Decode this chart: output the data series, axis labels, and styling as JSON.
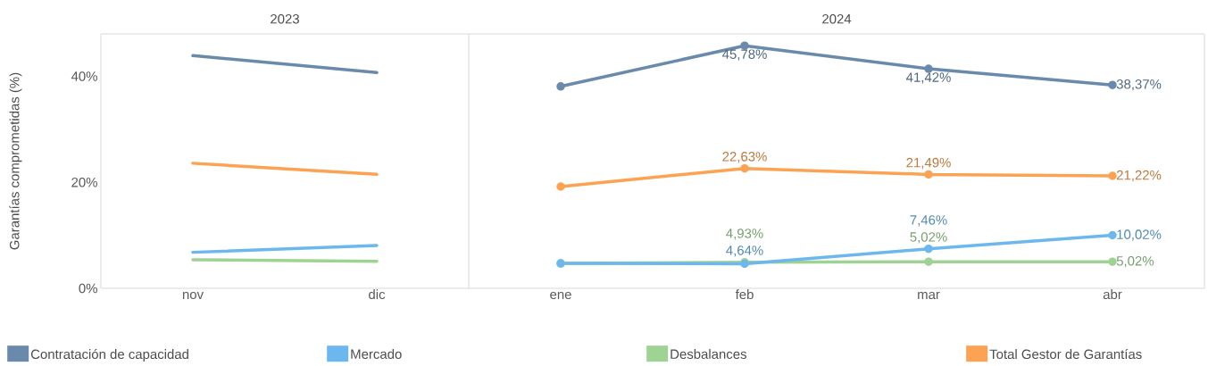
{
  "chart_data": [
    {
      "type": "line",
      "title": "2023",
      "ylabel": "Garantías comprometidas (%)",
      "categories": [
        "nov",
        "dic"
      ],
      "ylim": [
        0,
        48
      ],
      "yticks": [
        {
          "value": 0,
          "label": "0%"
        },
        {
          "value": 20,
          "label": "20%"
        },
        {
          "value": 40,
          "label": "40%"
        }
      ],
      "legend": "bottom",
      "series": [
        {
          "name": "Contratación de capacidad",
          "color": "#6a8aac",
          "values": [
            43.9,
            40.7
          ]
        },
        {
          "name": "Mercado",
          "color": "#6cb8ee",
          "values": [
            6.8,
            8.1
          ]
        },
        {
          "name": "Desbalances",
          "color": "#9fd394",
          "values": [
            5.4,
            5.1
          ]
        },
        {
          "name": "Total Gestor de Garantías",
          "color": "#fba352",
          "values": [
            23.6,
            21.5
          ]
        }
      ]
    },
    {
      "type": "line",
      "title": "2024",
      "categories": [
        "ene",
        "feb",
        "mar",
        "abr"
      ],
      "ylim": [
        0,
        48
      ],
      "tick_labels": "x",
      "marker": "circle",
      "series": [
        {
          "color": "#6a8aac",
          "values": [
            38.1,
            45.78,
            41.42,
            38.37
          ],
          "value_labels": [
            null,
            "45,78%",
            "41,42%",
            "38,37%"
          ]
        },
        {
          "color": "#6cb8ee",
          "values": [
            4.7,
            4.64,
            7.46,
            10.02
          ],
          "value_labels": [
            null,
            "4,64%",
            "7,46%",
            "10,02%"
          ]
        },
        {
          "color": "#9fd394",
          "values": [
            4.7,
            4.93,
            5.02,
            5.02
          ],
          "value_labels": [
            null,
            "4,93%",
            "5,02%",
            "5,02%"
          ]
        },
        {
          "color": "#fba352",
          "values": [
            19.2,
            22.63,
            21.49,
            21.22
          ],
          "value_labels": [
            null,
            "22,63%",
            "21,49%",
            "21,22%"
          ]
        }
      ]
    }
  ]
}
